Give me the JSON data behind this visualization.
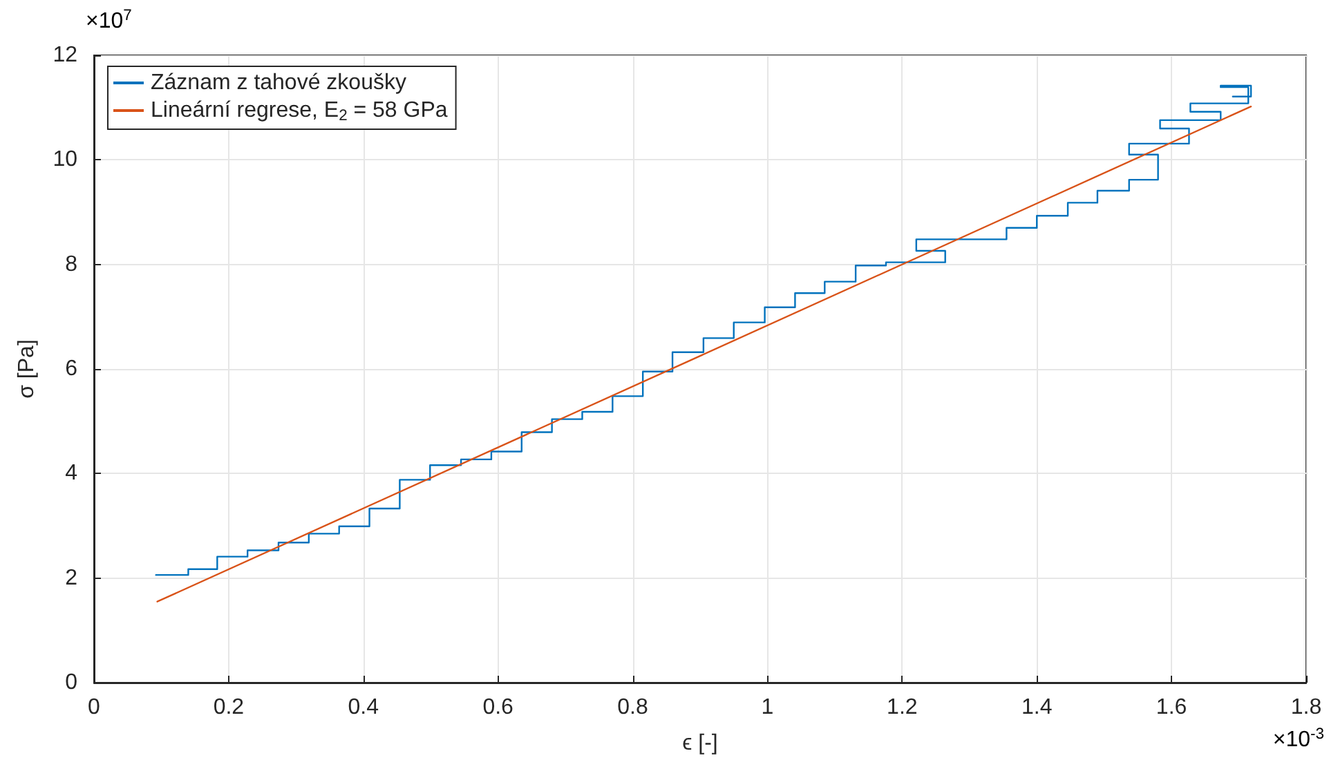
{
  "chart_data": {
    "type": "line",
    "xlabel": "ϵ [-]",
    "ylabel": "σ [Pa]",
    "xlim": [
      0,
      1.8
    ],
    "xticks": [
      0,
      0.2,
      0.4,
      0.6,
      0.8,
      1,
      1.2,
      1.4,
      1.6,
      1.8
    ],
    "ylim": [
      0,
      12
    ],
    "yticks": [
      0,
      2,
      4,
      6,
      8,
      10,
      12
    ],
    "grid": true,
    "legend": "top left",
    "marker": "none",
    "line_style": "solid",
    "annotations": [
      "×10$^{7}$",
      "×10$^{-3}$"
    ],
    "series": [
      {
        "name": "Záznam z tahové zkoušky",
        "color": "#0072bd",
        "x": [
          0.092,
          0.14,
          0.14,
          0.183,
          0.183,
          0.228,
          0.228,
          0.274,
          0.274,
          0.319,
          0.319,
          0.364,
          0.364,
          0.409,
          0.409,
          0.454,
          0.454,
          0.499,
          0.499,
          0.545,
          0.545,
          0.59,
          0.59,
          0.635,
          0.635,
          0.68,
          0.68,
          0.725,
          0.725,
          0.77,
          0.77,
          0.815,
          0.815,
          0.859,
          0.859,
          0.905,
          0.905,
          0.95,
          0.95,
          0.996,
          0.996,
          1.041,
          1.041,
          1.085,
          1.085,
          1.131,
          1.131,
          1.176,
          1.176,
          1.264,
          1.264,
          1.221,
          1.221,
          1.355,
          1.355,
          1.4,
          1.4,
          1.446,
          1.446,
          1.49,
          1.49,
          1.537,
          1.537,
          1.58,
          1.58,
          1.537,
          1.537,
          1.626,
          1.626,
          1.583,
          1.583,
          1.673,
          1.673,
          1.628,
          1.628,
          1.714,
          1.714,
          1.673,
          1.673,
          1.718,
          1.718,
          1.691
        ],
        "values": [
          2.06,
          2.06,
          2.17,
          2.17,
          2.41,
          2.41,
          2.53,
          2.53,
          2.68,
          2.68,
          2.85,
          2.85,
          2.99,
          2.99,
          3.33,
          3.33,
          3.88,
          3.88,
          4.16,
          4.16,
          4.27,
          4.27,
          4.42,
          4.42,
          4.79,
          4.79,
          5.04,
          5.04,
          5.18,
          5.18,
          5.48,
          5.48,
          5.95,
          5.95,
          6.32,
          6.32,
          6.59,
          6.59,
          6.89,
          6.89,
          7.18,
          7.18,
          7.45,
          7.45,
          7.67,
          7.67,
          7.98,
          7.98,
          8.04,
          8.04,
          8.26,
          8.26,
          8.48,
          8.48,
          8.7,
          8.7,
          8.93,
          8.93,
          9.18,
          9.18,
          9.41,
          9.41,
          9.62,
          9.62,
          10.1,
          10.1,
          10.31,
          10.31,
          10.6,
          10.6,
          10.76,
          10.76,
          10.92,
          10.92,
          11.08,
          11.08,
          11.39,
          11.39,
          11.42,
          11.42,
          11.21,
          11.21
        ]
      },
      {
        "name": "Lineární regrese, E$_{2}$ = 58 GPa",
        "color": "#d95319",
        "x": [
          0.094,
          1.718
        ],
        "values": [
          1.55,
          11.02
        ]
      }
    ]
  }
}
